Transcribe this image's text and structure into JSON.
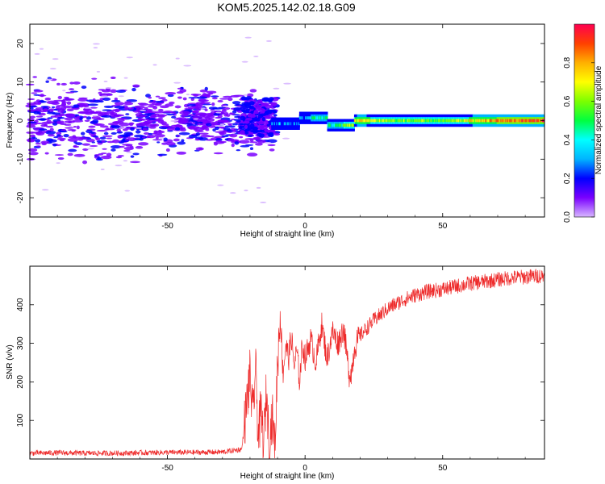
{
  "figure": {
    "title": "KOM5.2025.142.02.18.G09"
  },
  "chart_data": [
    {
      "type": "heatmap",
      "title": "KOM5.2025.142.02.18.G09",
      "xlabel": "Height of straight line (km)",
      "ylabel": "Frequency (Hz)",
      "xlim": [
        -100,
        87
      ],
      "ylim": [
        -25,
        25
      ],
      "xticks": [
        -50,
        0,
        50
      ],
      "yticks": [
        -20,
        -10,
        0,
        10,
        20
      ],
      "colorbar": {
        "label": "Normalized spectral amplitude",
        "range": [
          0,
          1
        ],
        "ticks": [
          "0.0",
          "0.2",
          "0.4",
          "0.6",
          "0.8"
        ],
        "colormap": [
          "#d8b8ff",
          "#7a00ff",
          "#0000ff",
          "#00b4ff",
          "#00ffff",
          "#00ff40",
          "#7cff00",
          "#ffff00",
          "#ffb000",
          "#ff4000",
          "#ff0050"
        ]
      },
      "description_points": [
        {
          "x": -90,
          "f": 2,
          "a": 0.12
        },
        {
          "x": -80,
          "f": -1,
          "a": 0.13
        },
        {
          "x": -70,
          "f": 1,
          "a": 0.12
        },
        {
          "x": -60,
          "f": 0,
          "a": 0.13
        },
        {
          "x": -50,
          "f": -2,
          "a": 0.12
        },
        {
          "x": -40,
          "f": 1,
          "a": 0.13
        },
        {
          "x": -30,
          "f": 0,
          "a": 0.12
        },
        {
          "x": -20,
          "f": 2,
          "a": 0.15
        },
        {
          "x": -10,
          "f": -1,
          "a": 0.3
        },
        {
          "x": 0,
          "f": -1,
          "a": 0.25
        },
        {
          "x": 3,
          "f": 1,
          "a": 0.45
        },
        {
          "x": 10,
          "f": -1,
          "a": 0.4
        },
        {
          "x": 20,
          "f": 0,
          "a": 0.75
        },
        {
          "x": 30,
          "f": 0,
          "a": 0.6
        },
        {
          "x": 50,
          "f": 0,
          "a": 0.55
        },
        {
          "x": 70,
          "f": 0,
          "a": 0.85
        },
        {
          "x": 85,
          "f": 0,
          "a": 0.9
        }
      ]
    },
    {
      "type": "line",
      "xlabel": "Height of straight line (km)",
      "ylabel": "SNR (v/v)",
      "xlim": [
        -100,
        87
      ],
      "ylim": [
        0,
        500
      ],
      "xticks": [
        -50,
        0,
        50
      ],
      "yticks": [
        100,
        200,
        300,
        400
      ],
      "color": "#ee2a2a",
      "x": [
        -100,
        -90,
        -80,
        -70,
        -60,
        -50,
        -40,
        -30,
        -23,
        -20,
        -19,
        -18,
        -17,
        -16,
        -15,
        -14,
        -13,
        -12,
        -11,
        -10,
        -9,
        -8,
        -7,
        -6,
        -5,
        -4,
        -3,
        -2,
        -1,
        0,
        2,
        4,
        6,
        8,
        10,
        12,
        14,
        16,
        17,
        18,
        20,
        25,
        30,
        35,
        40,
        45,
        50,
        55,
        60,
        65,
        70,
        75,
        80,
        85,
        87
      ],
      "y": [
        15,
        16,
        15,
        15,
        16,
        17,
        17,
        18,
        25,
        220,
        100,
        240,
        60,
        120,
        40,
        180,
        30,
        120,
        20,
        250,
        380,
        220,
        300,
        260,
        320,
        240,
        280,
        200,
        300,
        260,
        310,
        250,
        350,
        260,
        330,
        300,
        340,
        220,
        230,
        290,
        320,
        360,
        390,
        410,
        425,
        435,
        440,
        448,
        455,
        460,
        465,
        470,
        472,
        475,
        475
      ]
    }
  ]
}
